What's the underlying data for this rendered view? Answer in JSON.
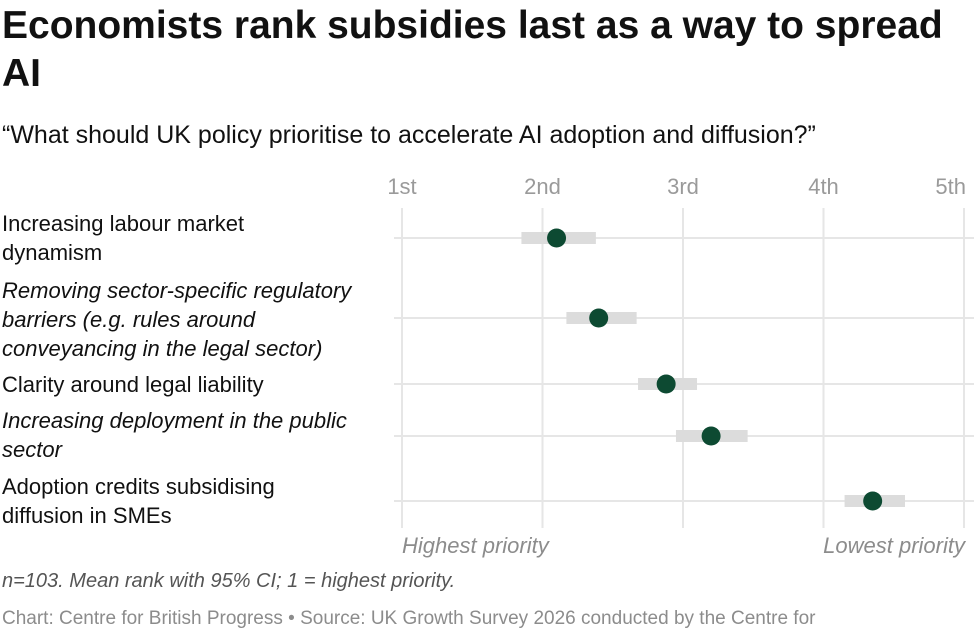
{
  "title": "Economists rank subsidies last as a way to spread AI",
  "subtitle": "“What should UK policy prioritise to accelerate AI adoption and diffusion?”",
  "note": "n=103. Mean rank with 95% CI; 1 = highest priority.",
  "source": "Chart: Centre for British Progress • Source: UK Growth Survey 2026 conducted by the Centre for",
  "colors": {
    "point": "#0d4a32",
    "ci": "#dcdcdc",
    "grid": "#e6e6e6"
  },
  "chart_data": {
    "type": "scatter",
    "x_axis": {
      "ticks": [
        1,
        2,
        3,
        4,
        5
      ],
      "tick_labels": [
        "1st",
        "2nd",
        "3rd",
        "4th",
        "5th"
      ],
      "range": [
        1,
        5
      ],
      "left_label": "Highest priority",
      "right_label": "Lowest priority"
    },
    "grid": true,
    "items": [
      {
        "label_lines": [
          "Increasing labour market",
          "dynamism"
        ],
        "italic": false,
        "mean": 2.1,
        "ci": [
          1.85,
          2.38
        ]
      },
      {
        "label_lines": [
          "Removing sector-specific regulatory",
          "barriers (e.g. rules around",
          "conveyancing in the legal sector)"
        ],
        "italic": true,
        "mean": 2.4,
        "ci": [
          2.17,
          2.67
        ]
      },
      {
        "label_lines": [
          "Clarity around legal liability"
        ],
        "italic": false,
        "mean": 2.88,
        "ci": [
          2.68,
          3.1
        ]
      },
      {
        "label_lines": [
          "Increasing deployment in the public",
          "sector"
        ],
        "italic": true,
        "mean": 3.2,
        "ci": [
          2.95,
          3.46
        ]
      },
      {
        "label_lines": [
          "Adoption credits subsidising",
          "diffusion in SMEs"
        ],
        "italic": false,
        "mean": 4.35,
        "ci": [
          4.15,
          4.58
        ]
      }
    ]
  }
}
